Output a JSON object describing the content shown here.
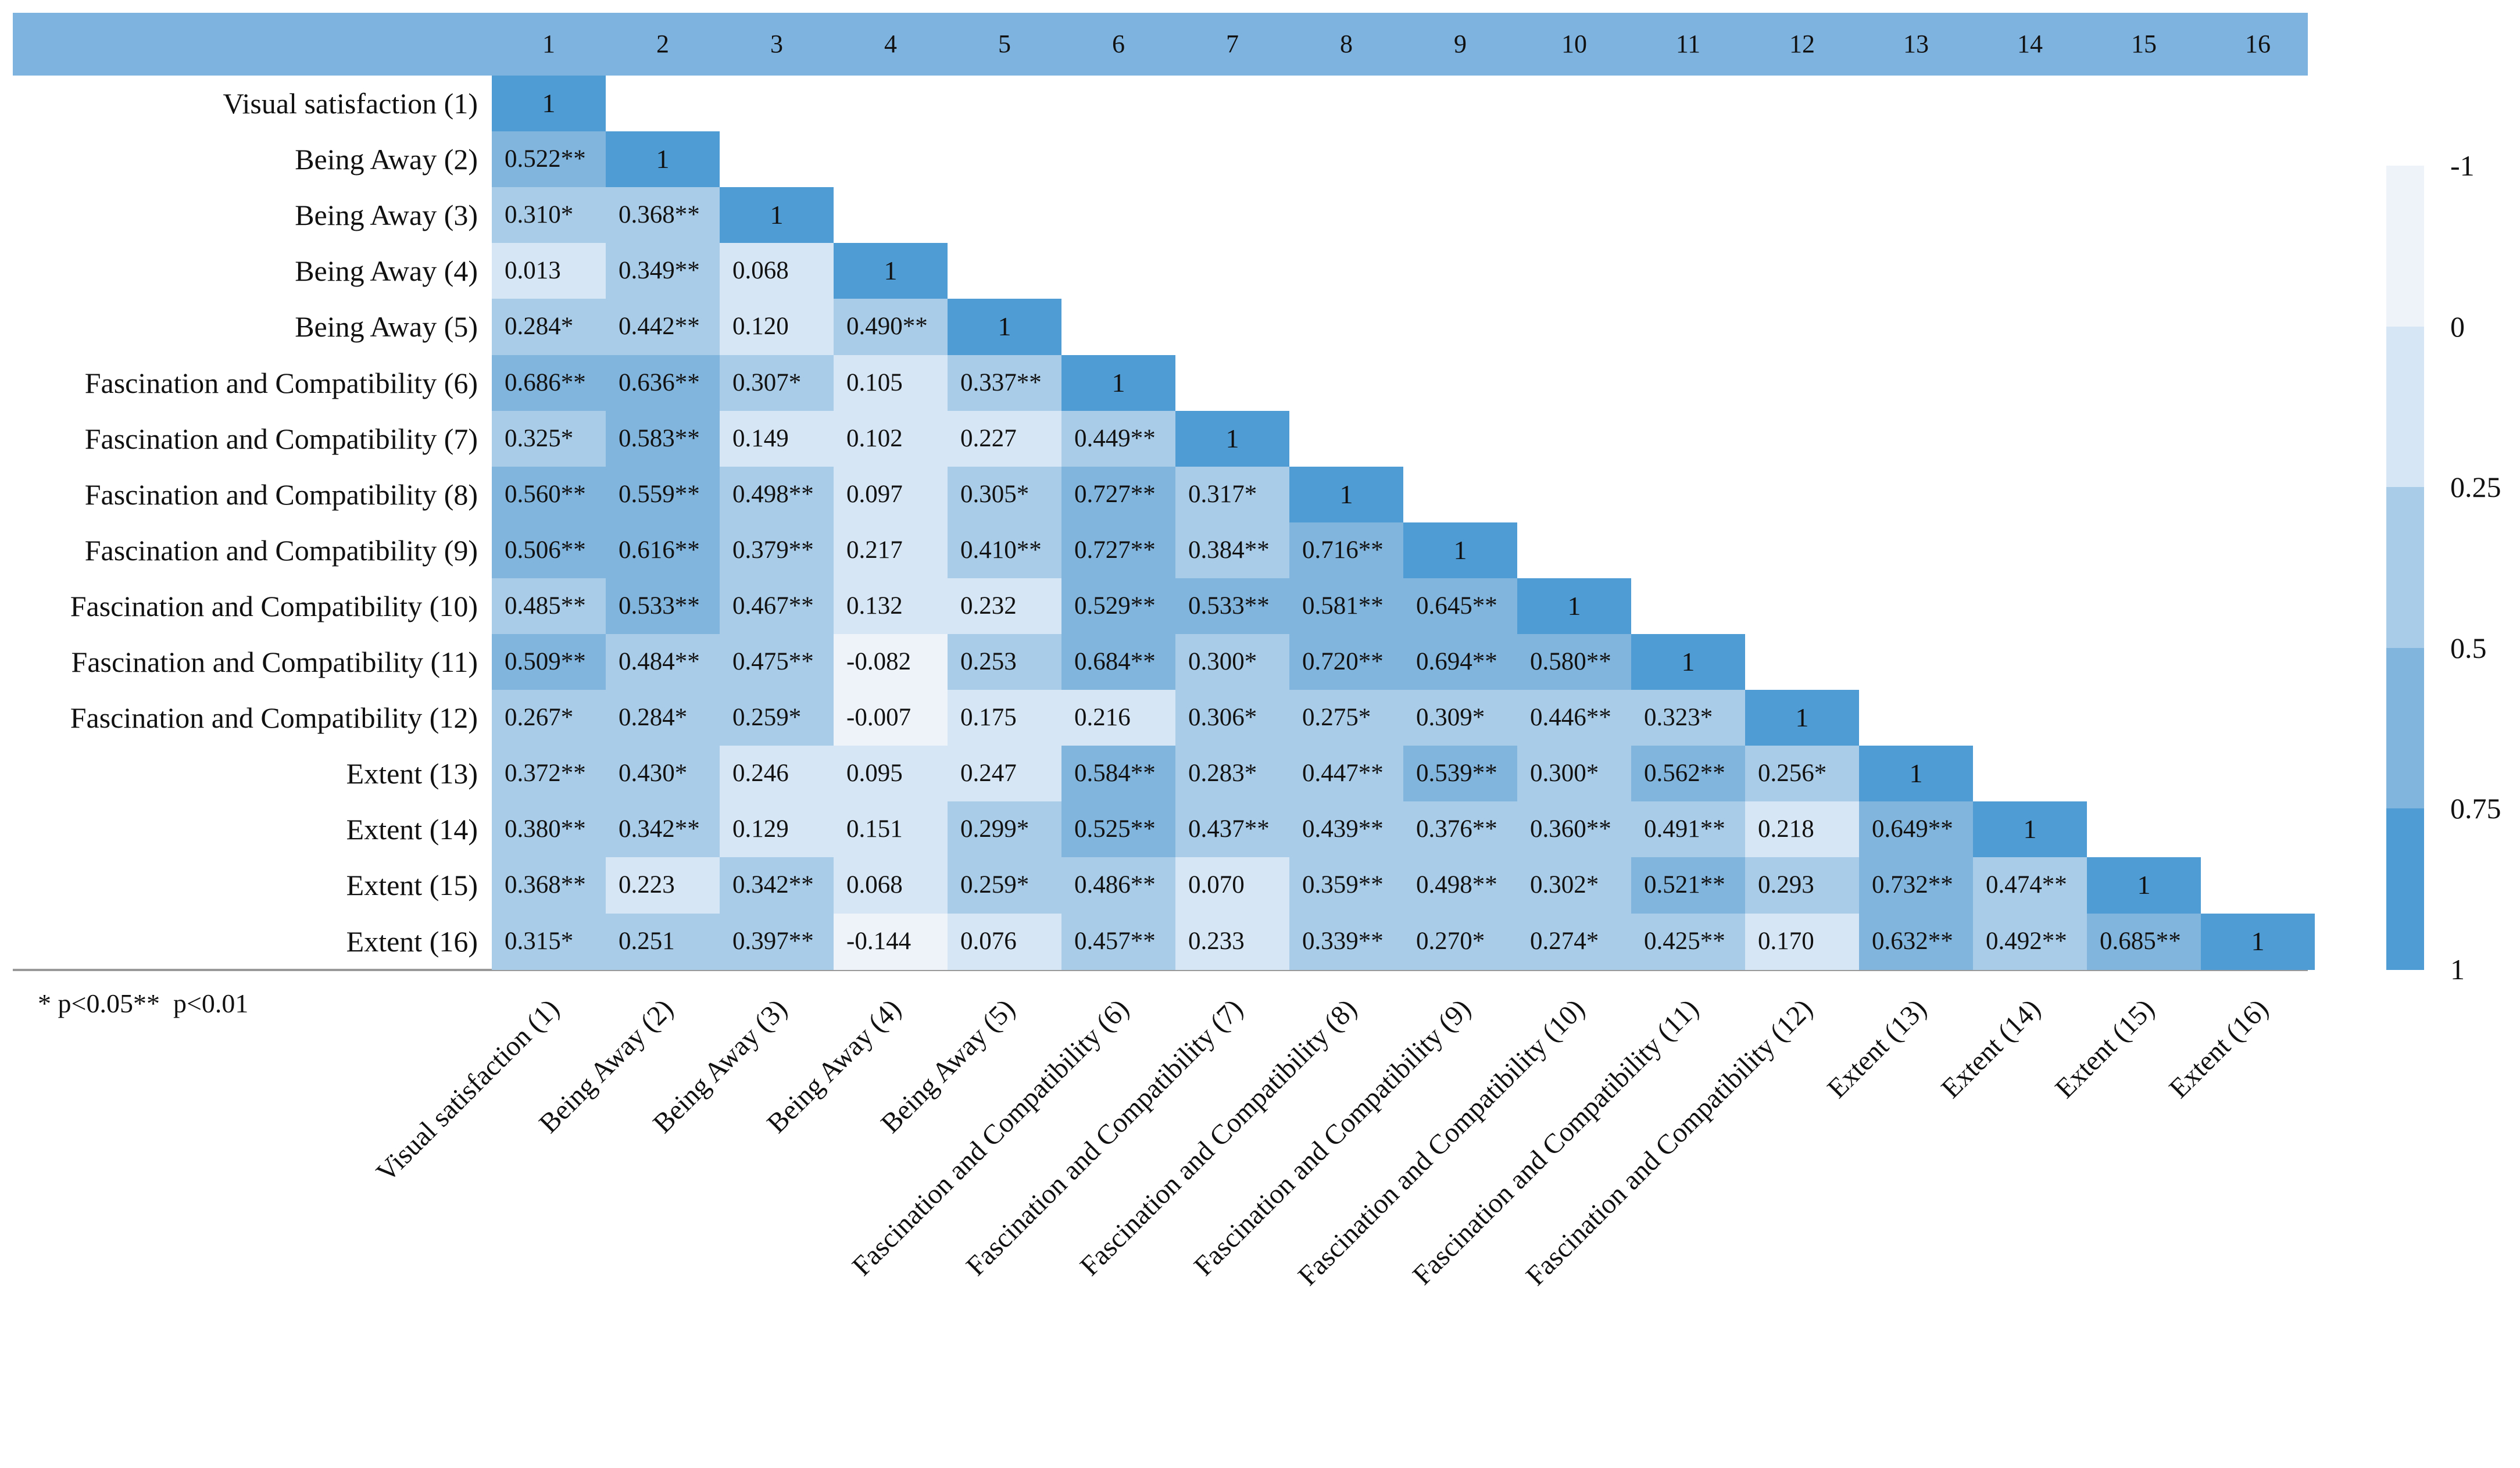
{
  "chart_data": {
    "type": "heatmap",
    "variables": [
      "Visual satisfaction (1)",
      "Being Away (2)",
      "Being Away (3)",
      "Being Away (4)",
      "Being Away (5)",
      "Fascination and Compatibility (6)",
      "Fascination and Compatibility (7)",
      "Fascination and Compatibility (8)",
      "Fascination and Compatibility (9)",
      "Fascination and Compatibility (10)",
      "Fascination and Compatibility (11)",
      "Fascination and Compatibility (12)",
      "Extent (13)",
      "Extent (14)",
      "Extent (15)",
      "Extent (16)"
    ],
    "column_headers": [
      "1",
      "2",
      "3",
      "4",
      "5",
      "6",
      "7",
      "8",
      "9",
      "10",
      "11",
      "12",
      "13",
      "14",
      "15",
      "16"
    ],
    "matrix_labels": [
      [
        "1"
      ],
      [
        "0.522**",
        "1"
      ],
      [
        "0.310*",
        "0.368**",
        "1"
      ],
      [
        "0.013",
        "0.349**",
        "0.068",
        "1"
      ],
      [
        "0.284*",
        "0.442**",
        "0.120",
        "0.490**",
        "1"
      ],
      [
        "0.686**",
        "0.636**",
        "0.307*",
        "0.105",
        "0.337**",
        "1"
      ],
      [
        "0.325*",
        "0.583**",
        "0.149",
        "0.102",
        "0.227",
        "0.449**",
        "1"
      ],
      [
        "0.560**",
        "0.559**",
        "0.498**",
        "0.097",
        "0.305*",
        "0.727**",
        "0.317*",
        "1"
      ],
      [
        "0.506**",
        "0.616**",
        "0.379**",
        "0.217",
        "0.410**",
        "0.727**",
        "0.384**",
        "0.716**",
        "1"
      ],
      [
        "0.485**",
        "0.533**",
        "0.467**",
        "0.132",
        "0.232",
        "0.529**",
        "0.533**",
        "0.581**",
        "0.645**",
        "1"
      ],
      [
        "0.509**",
        "0.484**",
        "0.475**",
        "-0.082",
        "0.253",
        "0.684**",
        "0.300*",
        "0.720**",
        "0.694**",
        "0.580**",
        "1"
      ],
      [
        "0.267*",
        "0.284*",
        "0.259*",
        "-0.007",
        "0.175",
        "0.216",
        "0.306*",
        "0.275*",
        "0.309*",
        "0.446**",
        "0.323*",
        "1"
      ],
      [
        "0.372**",
        "0.430*",
        "0.246",
        "0.095",
        "0.247",
        "0.584**",
        "0.283*",
        "0.447**",
        "0.539**",
        "0.300*",
        "0.562**",
        "0.256*",
        "1"
      ],
      [
        "0.380**",
        "0.342**",
        "0.129",
        "0.151",
        "0.299*",
        "0.525**",
        "0.437**",
        "0.439**",
        "0.376**",
        "0.360**",
        "0.491**",
        "0.218",
        "0.649**",
        "1"
      ],
      [
        "0.368**",
        "0.223",
        "0.342**",
        "0.068",
        "0.259*",
        "0.486**",
        "0.070",
        "0.359**",
        "0.498**",
        "0.302*",
        "0.521**",
        "0.293",
        "0.732**",
        "0.474**",
        "1"
      ],
      [
        "0.315*",
        "0.251",
        "0.397**",
        "-0.144",
        "0.076",
        "0.457**",
        "0.233",
        "0.339**",
        "0.270*",
        "0.274*",
        "0.425**",
        "0.170",
        "0.632**",
        "0.492**",
        "0.685**",
        "1"
      ]
    ],
    "footnote": "* p<0.05**  p<0.01",
    "colorscale": {
      "ticks": [
        "-1",
        "0",
        "0.25",
        "0.5",
        "0.75",
        "1"
      ],
      "bins": [
        {
          "min": -1,
          "max": 0,
          "color": "#edf3f9"
        },
        {
          "min": 0,
          "max": 0.25,
          "color": "#d6e6f4"
        },
        {
          "min": 0.25,
          "max": 0.5,
          "color": "#a9cce8"
        },
        {
          "min": 0.5,
          "max": 0.75,
          "color": "#82b5dd"
        },
        {
          "min": 0.75,
          "max": 1,
          "color": "#4f9bd3"
        }
      ]
    },
    "header_color": "#7fb3df",
    "legend_placement": "right"
  }
}
